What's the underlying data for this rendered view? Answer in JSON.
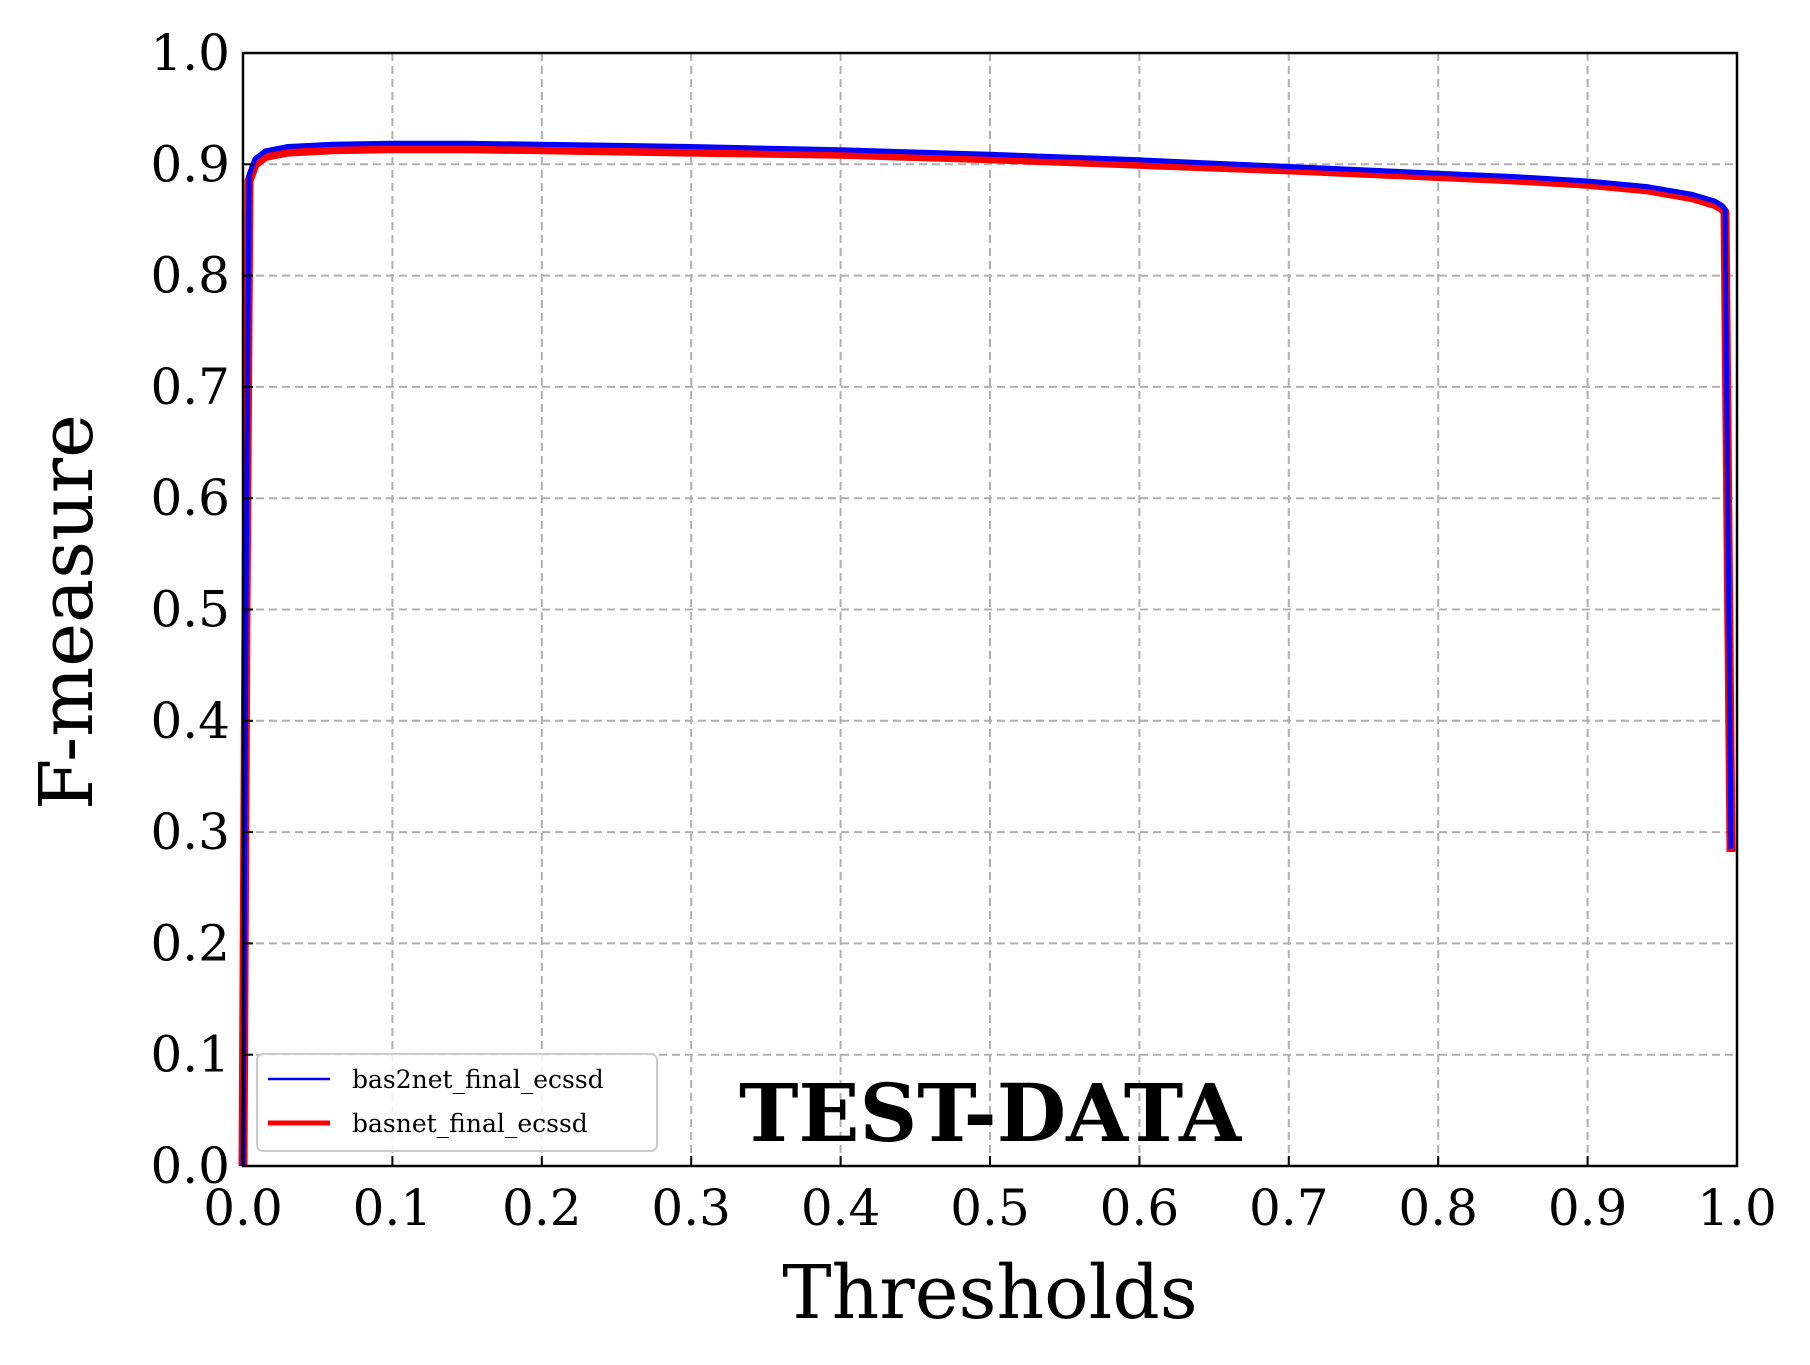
{
  "chart_data": {
    "type": "line",
    "xlabel": "Thresholds",
    "ylabel": "F-measure",
    "xlim": [
      0.0,
      1.0
    ],
    "ylim": [
      0.0,
      1.0
    ],
    "xticks": [
      "0.0",
      "0.1",
      "0.2",
      "0.3",
      "0.4",
      "0.5",
      "0.6",
      "0.7",
      "0.8",
      "0.9",
      "1.0"
    ],
    "yticks": [
      "0.0",
      "0.1",
      "0.2",
      "0.3",
      "0.4",
      "0.5",
      "0.6",
      "0.7",
      "0.8",
      "0.9",
      "1.0"
    ],
    "grid": true,
    "legend_position": "lower-left",
    "annotation": "TEST-DATA",
    "series": [
      {
        "name": "bas2net_final_ecssd",
        "color": "#0000ff",
        "x": [
          0.0,
          0.002,
          0.004,
          0.008,
          0.015,
          0.03,
          0.06,
          0.1,
          0.15,
          0.2,
          0.3,
          0.4,
          0.5,
          0.6,
          0.7,
          0.8,
          0.85,
          0.9,
          0.94,
          0.97,
          0.985,
          0.99,
          0.992,
          0.996
        ],
        "y": [
          0.0,
          0.5,
          0.89,
          0.905,
          0.912,
          0.916,
          0.918,
          0.919,
          0.919,
          0.918,
          0.916,
          0.913,
          0.909,
          0.904,
          0.898,
          0.892,
          0.889,
          0.885,
          0.88,
          0.873,
          0.867,
          0.863,
          0.86,
          0.285
        ]
      },
      {
        "name": "basnet_final_ecssd",
        "color": "#ff0000",
        "x": [
          0.0,
          0.002,
          0.004,
          0.008,
          0.015,
          0.03,
          0.06,
          0.1,
          0.15,
          0.2,
          0.3,
          0.4,
          0.5,
          0.6,
          0.7,
          0.8,
          0.85,
          0.9,
          0.94,
          0.97,
          0.985,
          0.99,
          0.992,
          0.996
        ],
        "y": [
          0.0,
          0.5,
          0.885,
          0.9,
          0.907,
          0.911,
          0.913,
          0.914,
          0.914,
          0.913,
          0.911,
          0.909,
          0.905,
          0.9,
          0.895,
          0.889,
          0.886,
          0.882,
          0.877,
          0.87,
          0.864,
          0.86,
          0.857,
          0.282
        ]
      }
    ]
  }
}
